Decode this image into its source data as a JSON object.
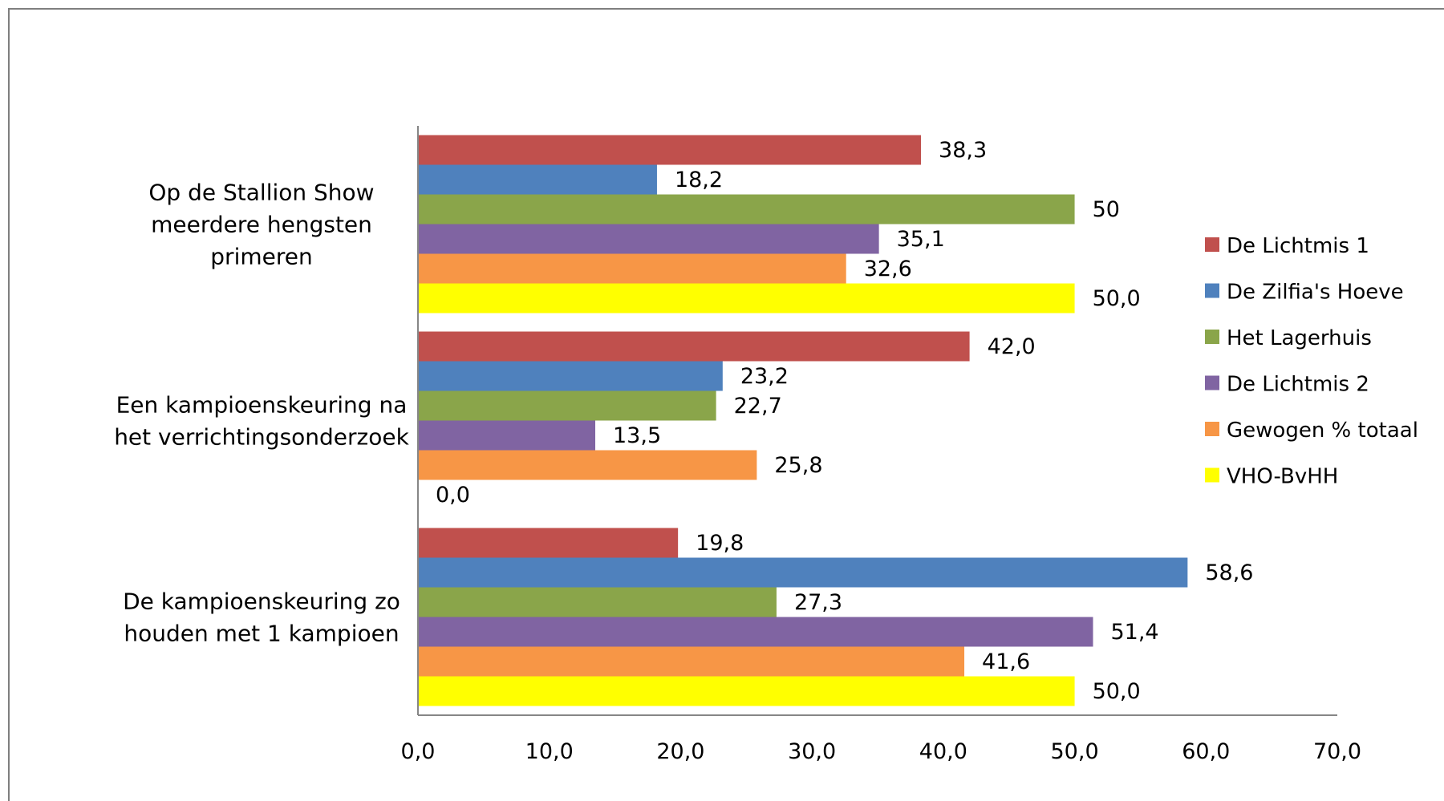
{
  "chart_data": {
    "type": "bar",
    "orientation": "horizontal",
    "categories": [
      [
        "Op de Stallion Show",
        "meerdere hengsten",
        "primeren"
      ],
      [
        "Een kampioenskeuring na",
        "het verrichtingsonderzoek"
      ],
      [
        "De kampioenskeuring zo",
        "houden met 1 kampioen"
      ]
    ],
    "series": [
      {
        "name": "De Lichtmis 1",
        "color": "#c0504d",
        "values": [
          38.3,
          42.0,
          19.8
        ],
        "labels": [
          "38,3",
          "42,0",
          "19,8"
        ]
      },
      {
        "name": "De Zilfia's Hoeve",
        "color": "#4f81bd",
        "values": [
          18.2,
          23.2,
          58.6
        ],
        "labels": [
          "18,2",
          "23,2",
          "58,6"
        ]
      },
      {
        "name": "Het Lagerhuis",
        "color": "#8aa54a",
        "values": [
          50,
          22.7,
          27.3
        ],
        "labels": [
          "50",
          "22,7",
          "27,3"
        ]
      },
      {
        "name": "De Lichtmis 2",
        "color": "#8064a2",
        "values": [
          35.1,
          13.5,
          51.4
        ],
        "labels": [
          "35,1",
          "13,5",
          "51,4"
        ]
      },
      {
        "name": "Gewogen % totaal",
        "color": "#f79646",
        "values": [
          32.6,
          25.8,
          41.6
        ],
        "labels": [
          "32,6",
          "25,8",
          "41,6"
        ]
      },
      {
        "name": "VHO-BvHH",
        "color": "#ffff00",
        "values": [
          50.0,
          0.0,
          50.0
        ],
        "labels": [
          "50,0",
          "0,0",
          "50,0"
        ]
      }
    ],
    "xlim": [
      0,
      70
    ],
    "xticks": [
      0,
      10,
      20,
      30,
      40,
      50,
      60,
      70
    ],
    "xtick_labels": [
      "0,0",
      "10,0",
      "20,0",
      "30,0",
      "40,0",
      "50,0",
      "60,0",
      "70,0"
    ],
    "title": "",
    "xlabel": "",
    "ylabel": "",
    "grid": false,
    "legend_position": "right"
  }
}
